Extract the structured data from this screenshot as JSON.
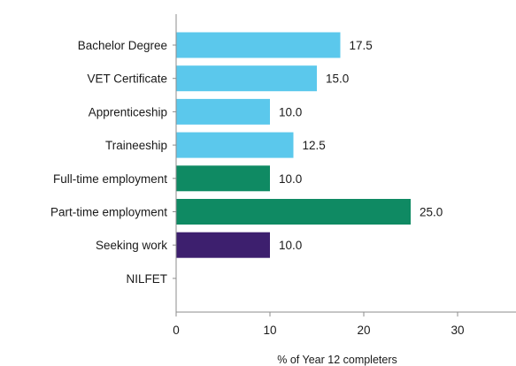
{
  "chart_data": {
    "type": "bar",
    "orientation": "horizontal",
    "categories": [
      "Bachelor Degree",
      "VET Certificate",
      "Apprenticeship",
      "Traineeship",
      "Full-time employment",
      "Part-time employment",
      "Seeking work",
      "NILFET"
    ],
    "values": [
      17.5,
      15.0,
      10.0,
      12.5,
      10.0,
      25.0,
      10.0,
      null
    ],
    "value_labels": [
      "17.5",
      "15.0",
      "10.0",
      "12.5",
      "10.0",
      "25.0",
      "10.0",
      ""
    ],
    "colors": [
      "#5bc8ec",
      "#5bc8ec",
      "#5bc8ec",
      "#5bc8ec",
      "#0f8a63",
      "#0f8a63",
      "#3d1f6e",
      "#5bc8ec"
    ],
    "xlabel": "% of Year 12 completers",
    "xlim": [
      0,
      35
    ],
    "xticks": [
      0,
      10,
      20,
      30
    ],
    "grid": false,
    "legend": false
  }
}
